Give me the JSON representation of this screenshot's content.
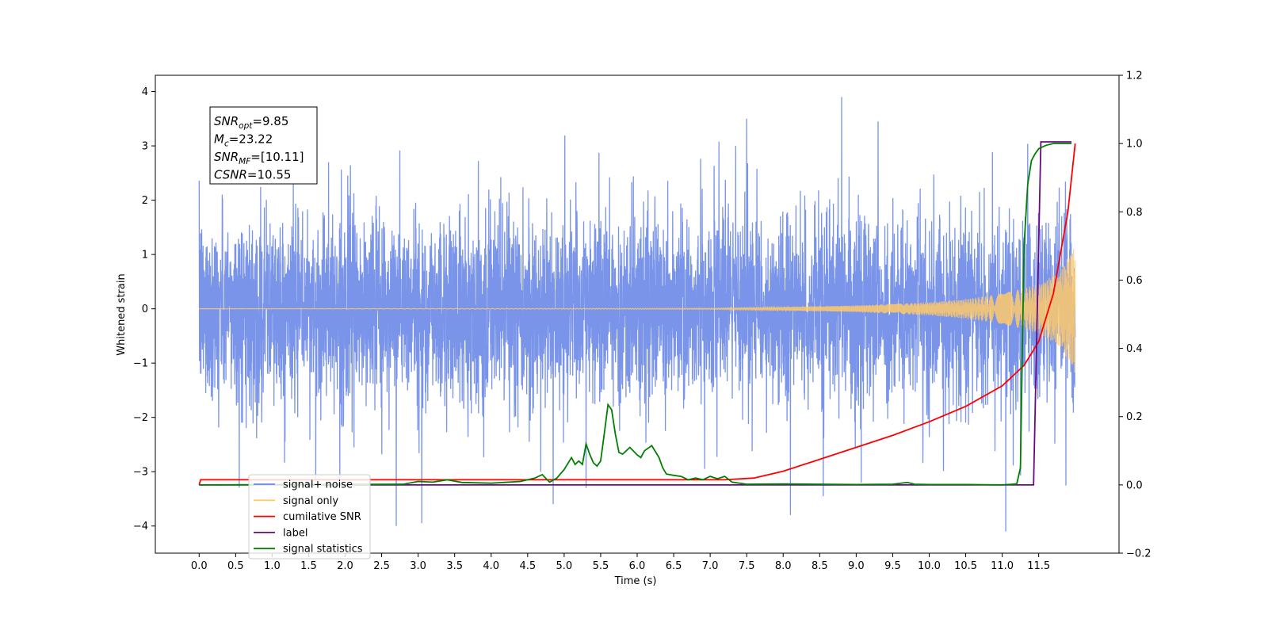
{
  "chart_data": {
    "type": "line",
    "xlabel": "Time (s)",
    "ylabel": "Whitened strain",
    "xlim": [
      -0.6,
      12.6
    ],
    "ylim": [
      -4.5,
      4.3
    ],
    "y2lim": [
      -0.2,
      1.2
    ],
    "x_ticks": [
      "0.0",
      "0.5",
      "1.0",
      "1.5",
      "2.0",
      "2.5",
      "3.0",
      "3.5",
      "4.0",
      "4.5",
      "5.0",
      "5.5",
      "6.0",
      "6.5",
      "7.0",
      "7.5",
      "8.0",
      "8.5",
      "9.0",
      "9.5",
      "10.0",
      "10.5",
      "11.0",
      "11.5"
    ],
    "y_ticks": [
      "4",
      "3",
      "2",
      "1",
      "0",
      "−1",
      "−2",
      "−3",
      "−4"
    ],
    "y2_ticks": [
      "1.2",
      "1.0",
      "0.8",
      "0.6",
      "0.4",
      "0.2",
      "0.0",
      "−0.2"
    ],
    "annotation": [
      {
        "main": "SNR",
        "sub": "opt",
        "rest": "=9.85"
      },
      {
        "main": "M",
        "sub": "c",
        "rest": "=23.22"
      },
      {
        "main": "SNR",
        "sub": "MF",
        "rest": "=[10.11]"
      },
      {
        "main": "CSNR",
        "sub": "",
        "rest": "=10.55"
      }
    ],
    "legend_position": "lower-left",
    "legend": [
      {
        "label": "signal+ noise",
        "color": "#6a88e6"
      },
      {
        "label": "signal only",
        "color": "#ffc96b"
      },
      {
        "label": "cumilative SNR",
        "color": "#ff0000"
      },
      {
        "label": "label",
        "color": "#6a0a80"
      },
      {
        "label": "signal statistics",
        "color": "#008000"
      }
    ],
    "series": [
      {
        "name": "signal+ noise",
        "axis": "left",
        "color": "#6a88e6",
        "t_range": [
          0.0,
          12.0
        ],
        "envelope_sigma": 0.85,
        "spike_points": [
          [
            2.7,
            -4.0
          ],
          [
            3.05,
            -3.95
          ],
          [
            4.85,
            -3.6
          ],
          [
            5.3,
            -3.3
          ],
          [
            8.1,
            -3.8
          ],
          [
            8.8,
            3.9
          ],
          [
            8.55,
            -3.45
          ],
          [
            11.05,
            -4.1
          ],
          [
            9.3,
            3.45
          ],
          [
            7.5,
            3.5
          ]
        ]
      },
      {
        "name": "signal only",
        "axis": "left",
        "color": "#ffc96b",
        "t_range": [
          0.0,
          12.0
        ],
        "amp_points": [
          [
            0.0,
            0.0
          ],
          [
            7.0,
            0.01
          ],
          [
            8.0,
            0.03
          ],
          [
            9.0,
            0.06
          ],
          [
            10.0,
            0.12
          ],
          [
            10.5,
            0.18
          ],
          [
            11.0,
            0.28
          ],
          [
            11.5,
            0.45
          ],
          [
            11.8,
            0.7
          ],
          [
            12.0,
            1.2
          ]
        ]
      },
      {
        "name": "cumilative SNR",
        "axis": "right",
        "color": "#ff0000",
        "x": [
          0.0,
          0.02,
          7.2,
          7.6,
          8.0,
          8.5,
          9.0,
          9.5,
          10.0,
          10.5,
          11.0,
          11.3,
          11.5,
          11.7,
          11.9,
          12.0
        ],
        "y": [
          0.0,
          0.015,
          0.015,
          0.02,
          0.04,
          0.075,
          0.11,
          0.145,
          0.185,
          0.23,
          0.29,
          0.35,
          0.42,
          0.56,
          0.8,
          1.0
        ]
      },
      {
        "name": "label",
        "axis": "right",
        "color": "#6a0a80",
        "x": [
          0.0,
          11.43,
          11.53,
          11.95
        ],
        "y": [
          0.0,
          0.0,
          1.005,
          1.005
        ]
      },
      {
        "name": "signal statistics",
        "axis": "right",
        "color": "#008000",
        "x": [
          0.0,
          2.8,
          3.0,
          3.2,
          3.4,
          3.6,
          4.0,
          4.4,
          4.6,
          4.7,
          4.8,
          4.9,
          5.0,
          5.1,
          5.15,
          5.2,
          5.25,
          5.3,
          5.35,
          5.4,
          5.45,
          5.5,
          5.55,
          5.6,
          5.65,
          5.7,
          5.75,
          5.8,
          5.9,
          6.0,
          6.05,
          6.1,
          6.2,
          6.3,
          6.35,
          6.4,
          6.5,
          6.6,
          6.7,
          6.8,
          6.9,
          7.0,
          7.1,
          7.2,
          7.3,
          7.5,
          8.0,
          8.5,
          9.0,
          9.5,
          9.7,
          9.8,
          10.0,
          10.5,
          11.0,
          11.2,
          11.25,
          11.3,
          11.35,
          11.4,
          11.45,
          11.5,
          11.6,
          11.7,
          11.95
        ],
        "y": [
          0.0,
          0.002,
          0.01,
          0.008,
          0.015,
          0.007,
          0.005,
          0.01,
          0.02,
          0.03,
          0.008,
          0.02,
          0.045,
          0.08,
          0.06,
          0.07,
          0.06,
          0.12,
          0.09,
          0.065,
          0.055,
          0.07,
          0.15,
          0.235,
          0.22,
          0.15,
          0.095,
          0.09,
          0.11,
          0.088,
          0.08,
          0.1,
          0.115,
          0.08,
          0.05,
          0.032,
          0.028,
          0.025,
          0.015,
          0.02,
          0.015,
          0.025,
          0.018,
          0.025,
          0.008,
          0.002,
          0.003,
          0.002,
          0.001,
          0.002,
          0.007,
          0.002,
          0.001,
          0.001,
          0.0,
          0.003,
          0.05,
          0.7,
          0.88,
          0.95,
          0.97,
          0.985,
          0.995,
          1.0,
          1.0
        ]
      }
    ]
  }
}
